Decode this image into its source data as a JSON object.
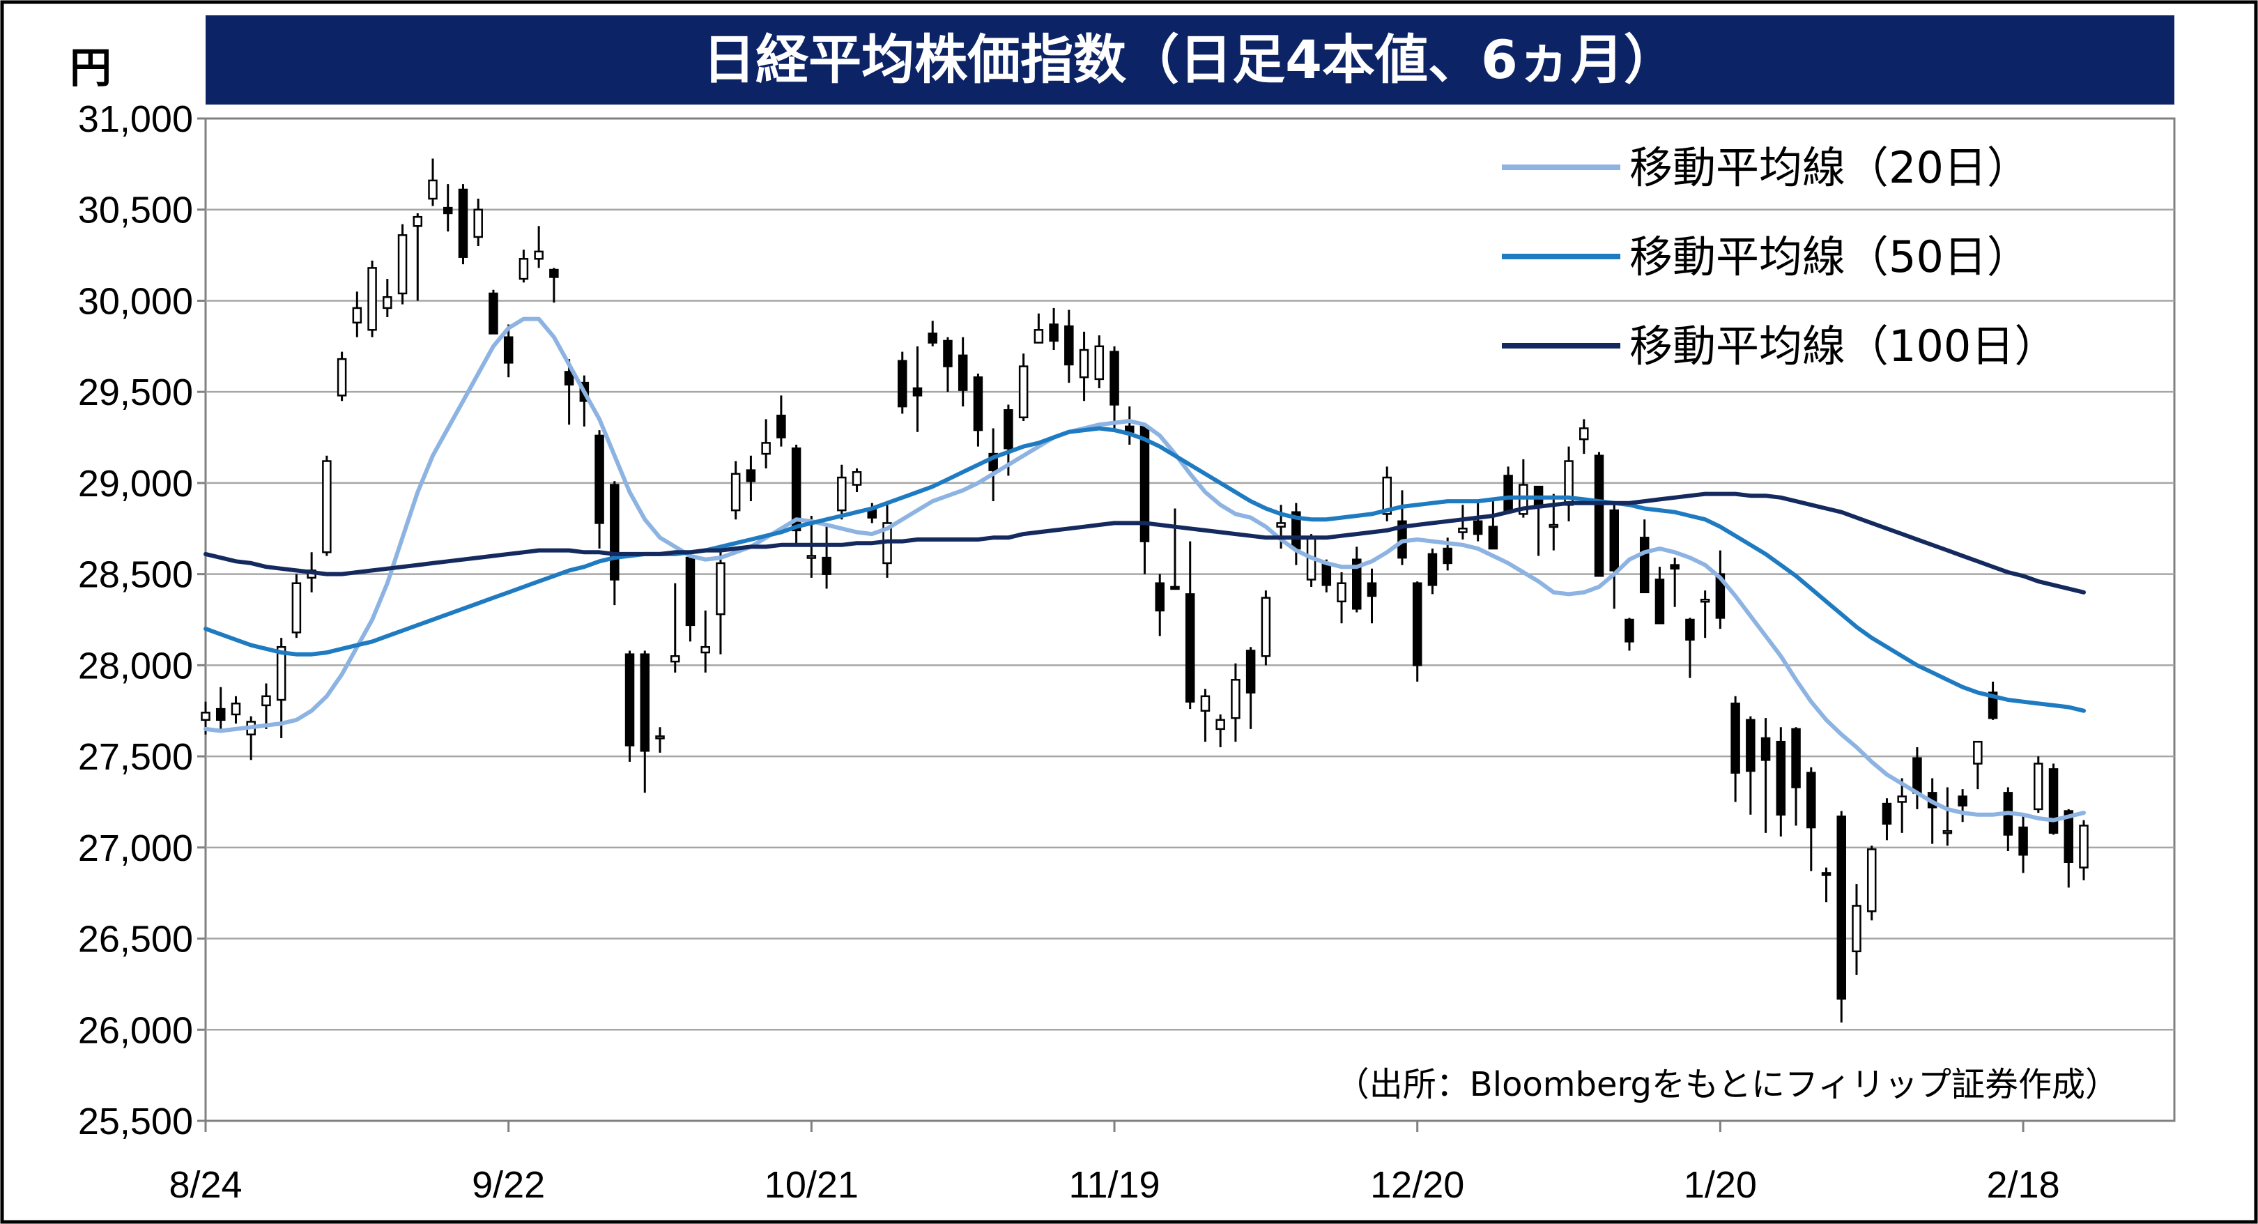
{
  "chart_data": {
    "type": "candlestick",
    "title": "日経平均株価指数（日足4本値、6ヵ月）",
    "y_unit": "円",
    "ylim": [
      25500,
      31000
    ],
    "y_ticks": [
      "31,000",
      "30,500",
      "30,000",
      "29,500",
      "29,000",
      "28,500",
      "28,000",
      "27,500",
      "27,000",
      "26,500",
      "26,000",
      "25,500"
    ],
    "x_ticks": [
      "8/24",
      "9/22",
      "10/21",
      "11/19",
      "12/20",
      "1/20",
      "2/18"
    ],
    "x_tick_positions": [
      0,
      20,
      40,
      60,
      80,
      100,
      120
    ],
    "grid": true,
    "legend_position": "top-right",
    "legend": [
      "移動平均線（20日）",
      "移動平均線（50日）",
      "移動平均線（100日）"
    ],
    "source": "（出所：Bloombergをもとにフィリップ証券作成）",
    "ohlc": [
      [
        27700,
        27800,
        27620,
        27740
      ],
      [
        27760,
        27880,
        27650,
        27700
      ],
      [
        27730,
        27830,
        27680,
        27790
      ],
      [
        27620,
        27720,
        27480,
        27690
      ],
      [
        27780,
        27900,
        27650,
        27830
      ],
      [
        27810,
        28150,
        27600,
        28100
      ],
      [
        28180,
        28500,
        28150,
        28450
      ],
      [
        28480,
        28620,
        28400,
        28520
      ],
      [
        28620,
        29150,
        28600,
        29120
      ],
      [
        29480,
        29720,
        29450,
        29680
      ],
      [
        29880,
        30050,
        29800,
        29960
      ],
      [
        29840,
        30220,
        29800,
        30180
      ],
      [
        29960,
        30120,
        29910,
        30020
      ],
      [
        30040,
        30420,
        29980,
        30360
      ],
      [
        30410,
        30480,
        30000,
        30460
      ],
      [
        30560,
        30780,
        30520,
        30660
      ],
      [
        30510,
        30640,
        30380,
        30480
      ],
      [
        30610,
        30640,
        30200,
        30240
      ],
      [
        30350,
        30560,
        30300,
        30500
      ],
      [
        30040,
        30060,
        29820,
        29820
      ],
      [
        29800,
        29870,
        29580,
        29660
      ],
      [
        30120,
        30280,
        30100,
        30230
      ],
      [
        30230,
        30410,
        30180,
        30270
      ],
      [
        30170,
        30180,
        29990,
        30130
      ],
      [
        29610,
        29680,
        29320,
        29540
      ],
      [
        29550,
        29590,
        29310,
        29450
      ],
      [
        29260,
        29290,
        28640,
        28780
      ],
      [
        28990,
        29010,
        28330,
        28470
      ],
      [
        28060,
        28080,
        27470,
        27560
      ],
      [
        28060,
        28080,
        27300,
        27530
      ],
      [
        27600,
        27660,
        27520,
        27610
      ],
      [
        28020,
        28450,
        27960,
        28050
      ],
      [
        28590,
        28620,
        28130,
        28220
      ],
      [
        28070,
        28300,
        27960,
        28100
      ],
      [
        28280,
        28640,
        28060,
        28560
      ],
      [
        28850,
        29120,
        28800,
        29050
      ],
      [
        29070,
        29150,
        28900,
        29010
      ],
      [
        29160,
        29350,
        29080,
        29220
      ],
      [
        29370,
        29480,
        29200,
        29250
      ],
      [
        29190,
        29210,
        28650,
        28740
      ],
      [
        28590,
        28820,
        28480,
        28600
      ],
      [
        28590,
        28780,
        28420,
        28500
      ],
      [
        28850,
        29100,
        28800,
        29030
      ],
      [
        28990,
        29080,
        28950,
        29060
      ],
      [
        28860,
        28890,
        28780,
        28810
      ],
      [
        28560,
        28880,
        28480,
        28780
      ],
      [
        29670,
        29720,
        29380,
        29420
      ],
      [
        29520,
        29750,
        29280,
        29480
      ],
      [
        29820,
        29890,
        29750,
        29770
      ],
      [
        29780,
        29800,
        29500,
        29640
      ],
      [
        29700,
        29800,
        29420,
        29510
      ],
      [
        29580,
        29600,
        29200,
        29290
      ],
      [
        29160,
        29300,
        28900,
        29070
      ],
      [
        29400,
        29430,
        29040,
        29190
      ],
      [
        29360,
        29710,
        29340,
        29640
      ],
      [
        29770,
        29930,
        29780,
        29840
      ],
      [
        29870,
        29960,
        29730,
        29780
      ],
      [
        29860,
        29950,
        29550,
        29650
      ],
      [
        29580,
        29830,
        29450,
        29730
      ],
      [
        29570,
        29810,
        29520,
        29750
      ],
      [
        29720,
        29750,
        29280,
        29430
      ],
      [
        29310,
        29420,
        29210,
        29280
      ],
      [
        29310,
        29330,
        28500,
        28680
      ],
      [
        28450,
        28500,
        28160,
        28300
      ],
      [
        28430,
        28860,
        28420,
        28420
      ],
      [
        28390,
        28680,
        27760,
        27800
      ],
      [
        27750,
        27870,
        27580,
        27830
      ],
      [
        27650,
        27730,
        27550,
        27700
      ],
      [
        27710,
        28010,
        27580,
        27920
      ],
      [
        28080,
        28100,
        27650,
        27850
      ],
      [
        28050,
        28410,
        28000,
        28370
      ],
      [
        28760,
        28880,
        28640,
        28780
      ],
      [
        28840,
        28890,
        28550,
        28640
      ],
      [
        28470,
        28720,
        28430,
        28700
      ],
      [
        28560,
        28580,
        28400,
        28440
      ],
      [
        28350,
        28510,
        28230,
        28450
      ],
      [
        28580,
        28650,
        28290,
        28310
      ],
      [
        28450,
        28530,
        28230,
        28380
      ],
      [
        28830,
        29090,
        28790,
        29030
      ],
      [
        28790,
        28960,
        28550,
        28590
      ],
      [
        28450,
        28460,
        27910,
        28000
      ],
      [
        28610,
        28640,
        28390,
        28440
      ],
      [
        28640,
        28700,
        28520,
        28560
      ],
      [
        28730,
        28880,
        28690,
        28750
      ],
      [
        28790,
        28900,
        28680,
        28720
      ],
      [
        28760,
        28920,
        28640,
        28640
      ],
      [
        29040,
        29090,
        28840,
        28850
      ],
      [
        28830,
        29130,
        28810,
        28990
      ],
      [
        28980,
        28980,
        28600,
        28870
      ],
      [
        28760,
        28940,
        28630,
        28770
      ],
      [
        28880,
        29200,
        28790,
        29120
      ],
      [
        29240,
        29350,
        29160,
        29300
      ],
      [
        29150,
        29170,
        28490,
        28490
      ],
      [
        28850,
        28880,
        28310,
        28520
      ],
      [
        28250,
        28260,
        28080,
        28130
      ],
      [
        28700,
        28800,
        28400,
        28400
      ],
      [
        28470,
        28540,
        28230,
        28230
      ],
      [
        28550,
        28590,
        28320,
        28530
      ],
      [
        28250,
        28260,
        27930,
        28140
      ],
      [
        28360,
        28410,
        28150,
        28360
      ],
      [
        28500,
        28630,
        28200,
        28260
      ],
      [
        27790,
        27830,
        27250,
        27410
      ],
      [
        27700,
        27720,
        27180,
        27420
      ],
      [
        27600,
        27710,
        27080,
        27480
      ],
      [
        27580,
        27660,
        27060,
        27180
      ],
      [
        27650,
        27660,
        27120,
        27330
      ],
      [
        27410,
        27440,
        26870,
        27110
      ],
      [
        26860,
        26890,
        26700,
        26850
      ],
      [
        27170,
        27200,
        26040,
        26170
      ],
      [
        26430,
        26800,
        26300,
        26680
      ],
      [
        26650,
        27010,
        26600,
        26990
      ],
      [
        27240,
        27270,
        27040,
        27130
      ],
      [
        27250,
        27380,
        27080,
        27280
      ],
      [
        27490,
        27550,
        27210,
        27300
      ],
      [
        27300,
        27380,
        27020,
        27220
      ],
      [
        27080,
        27330,
        27010,
        27090
      ],
      [
        27280,
        27320,
        27140,
        27230
      ],
      [
        27460,
        27560,
        27320,
        27580
      ],
      [
        27850,
        27910,
        27700,
        27710
      ],
      [
        27300,
        27330,
        26980,
        27070
      ],
      [
        27110,
        27170,
        26860,
        26960
      ],
      [
        27210,
        27500,
        27190,
        27460
      ],
      [
        27430,
        27460,
        27070,
        27080
      ],
      [
        27200,
        27210,
        26780,
        26920
      ],
      [
        26890,
        27150,
        26820,
        27120
      ]
    ],
    "series": [
      {
        "name": "移動平均線（20日）",
        "color": "#8db3e2",
        "values": [
          27650,
          27640,
          27650,
          27660,
          27670,
          27680,
          27700,
          27750,
          27830,
          27950,
          28100,
          28250,
          28450,
          28700,
          28950,
          29150,
          29300,
          29450,
          29600,
          29750,
          29850,
          29900,
          29900,
          29800,
          29650,
          29500,
          29350,
          29150,
          28950,
          28800,
          28700,
          28650,
          28600,
          28580,
          28590,
          28620,
          28650,
          28700,
          28750,
          28800,
          28790,
          28770,
          28750,
          28730,
          28720,
          28750,
          28800,
          28850,
          28900,
          28930,
          28960,
          29000,
          29050,
          29100,
          29150,
          29200,
          29250,
          29280,
          29300,
          29320,
          29330,
          29340,
          29320,
          29260,
          29160,
          29050,
          28950,
          28880,
          28830,
          28810,
          28760,
          28690,
          28630,
          28590,
          28560,
          28540,
          28540,
          28570,
          28620,
          28680,
          28690,
          28680,
          28670,
          28660,
          28640,
          28600,
          28560,
          28510,
          28460,
          28400,
          28390,
          28400,
          28430,
          28500,
          28580,
          28620,
          28640,
          28620,
          28590,
          28550,
          28480,
          28380,
          28270,
          28160,
          28050,
          27920,
          27800,
          27700,
          27620,
          27550,
          27470,
          27400,
          27350,
          27300,
          27250,
          27210,
          27190,
          27180,
          27180,
          27190,
          27180,
          27160,
          27150,
          27170,
          27190
        ]
      },
      {
        "name": "移動平均線（50日）",
        "color": "#1f7bc1",
        "values": [
          28200,
          28170,
          28140,
          28110,
          28090,
          28070,
          28060,
          28060,
          28070,
          28090,
          28110,
          28130,
          28160,
          28190,
          28220,
          28250,
          28280,
          28310,
          28340,
          28370,
          28400,
          28430,
          28460,
          28490,
          28520,
          28540,
          28570,
          28590,
          28600,
          28610,
          28610,
          28610,
          28620,
          28630,
          28650,
          28670,
          28690,
          28710,
          28730,
          28760,
          28780,
          28800,
          28820,
          28840,
          28860,
          28890,
          28920,
          28950,
          28980,
          29020,
          29060,
          29100,
          29140,
          29170,
          29200,
          29220,
          29250,
          29280,
          29290,
          29300,
          29290,
          29270,
          29240,
          29200,
          29150,
          29100,
          29050,
          29000,
          28950,
          28900,
          28860,
          28830,
          28810,
          28800,
          28800,
          28810,
          28820,
          28830,
          28850,
          28870,
          28880,
          28890,
          28900,
          28900,
          28900,
          28910,
          28920,
          28920,
          28920,
          28920,
          28920,
          28910,
          28900,
          28890,
          28880,
          28860,
          28850,
          28840,
          28820,
          28800,
          28760,
          28710,
          28660,
          28610,
          28550,
          28490,
          28420,
          28350,
          28280,
          28210,
          28150,
          28100,
          28050,
          28000,
          27960,
          27920,
          27880,
          27850,
          27830,
          27810,
          27800,
          27790,
          27780,
          27770,
          27750
        ]
      },
      {
        "name": "移動平均線（100日）",
        "color": "#142a5e",
        "values": [
          28610,
          28590,
          28570,
          28560,
          28540,
          28530,
          28520,
          28510,
          28500,
          28500,
          28510,
          28520,
          28530,
          28540,
          28550,
          28560,
          28570,
          28580,
          28590,
          28600,
          28610,
          28620,
          28630,
          28630,
          28630,
          28620,
          28620,
          28610,
          28610,
          28610,
          28610,
          28620,
          28620,
          28630,
          28630,
          28640,
          28650,
          28650,
          28660,
          28660,
          28660,
          28660,
          28660,
          28670,
          28670,
          28680,
          28680,
          28690,
          28690,
          28690,
          28690,
          28690,
          28700,
          28700,
          28720,
          28730,
          28740,
          28750,
          28760,
          28770,
          28780,
          28780,
          28780,
          28770,
          28760,
          28750,
          28740,
          28730,
          28720,
          28710,
          28700,
          28700,
          28700,
          28700,
          28700,
          28710,
          28720,
          28730,
          28740,
          28760,
          28770,
          28780,
          28790,
          28800,
          28810,
          28820,
          28840,
          28860,
          28870,
          28880,
          28890,
          28890,
          28890,
          28890,
          28890,
          28900,
          28910,
          28920,
          28930,
          28940,
          28940,
          28940,
          28930,
          28930,
          28920,
          28900,
          28880,
          28860,
          28840,
          28810,
          28780,
          28750,
          28720,
          28690,
          28660,
          28630,
          28600,
          28570,
          28540,
          28510,
          28490,
          28460,
          28440,
          28420,
          28400
        ]
      }
    ]
  }
}
